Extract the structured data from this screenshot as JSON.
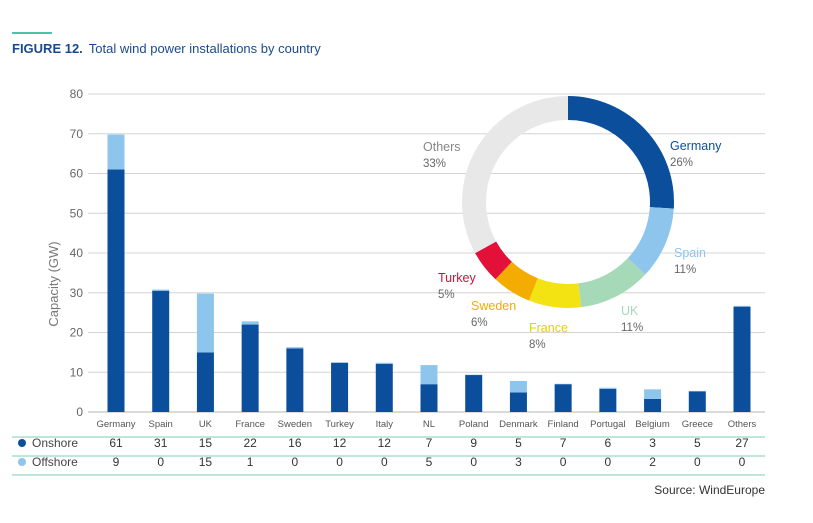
{
  "figure": {
    "number": "FIGURE 12.",
    "title": "Total wind power installations by country",
    "source": "Source: WindEurope"
  },
  "chart_data": [
    {
      "type": "bar",
      "stacked": true,
      "ylabel": "Capacity (GW)",
      "ylim": [
        0,
        80
      ],
      "yticks": [
        0,
        10,
        20,
        30,
        40,
        50,
        60,
        70,
        80
      ],
      "grid": true,
      "categories": [
        "Germany",
        "Spain",
        "UK",
        "France",
        "Sweden",
        "Turkey",
        "Italy",
        "NL",
        "Poland",
        "Denmark",
        "Finland",
        "Portugal",
        "Belgium",
        "Greece",
        "Others"
      ],
      "series": [
        {
          "name": "Onshore",
          "color": "#0b4f9c",
          "values": [
            61,
            31,
            15,
            22,
            16,
            12,
            12,
            7,
            9,
            5,
            7,
            6,
            3,
            5,
            27
          ],
          "bar_values": [
            61,
            30.5,
            15,
            22,
            16,
            12.4,
            12.1,
            7,
            9.3,
            4.9,
            7,
            5.8,
            3.3,
            5.2,
            26.5
          ]
        },
        {
          "name": "Offshore",
          "color": "#8ec5ec",
          "values": [
            9,
            0,
            15,
            1,
            0,
            0,
            0,
            5,
            0,
            3,
            0,
            0,
            2,
            0,
            0
          ],
          "bar_values": [
            8.8,
            0.3,
            14.8,
            0.8,
            0.3,
            0.1,
            0.3,
            4.8,
            0.1,
            2.9,
            0.1,
            0.3,
            2.4,
            0.1,
            0.2
          ]
        }
      ]
    },
    {
      "type": "pie",
      "donut": true,
      "slices": [
        {
          "label": "Germany",
          "pct_label": "26%",
          "value": 26,
          "color": "#0b4f9c",
          "text_color": "#0b4f9c"
        },
        {
          "label": "Spain",
          "pct_label": "11%",
          "value": 11,
          "color": "#8ec5ec",
          "text_color": "#8ec5ec"
        },
        {
          "label": "UK",
          "pct_label": "11%",
          "value": 11,
          "color": "#a6d9b8",
          "text_color": "#a6d9b8"
        },
        {
          "label": "France",
          "pct_label": "8%",
          "value": 8,
          "color": "#f3e313",
          "text_color": "#e6d000"
        },
        {
          "label": "Sweden",
          "pct_label": "6%",
          "value": 6,
          "color": "#f5ac00",
          "text_color": "#f5ac00"
        },
        {
          "label": "Turkey",
          "pct_label": "5%",
          "value": 5,
          "color": "#e3103a",
          "text_color": "#d5103a"
        },
        {
          "label": "Others",
          "pct_label": "33%",
          "value": 33,
          "color": "#e8e8e8",
          "text_color": "#888888"
        }
      ]
    }
  ]
}
